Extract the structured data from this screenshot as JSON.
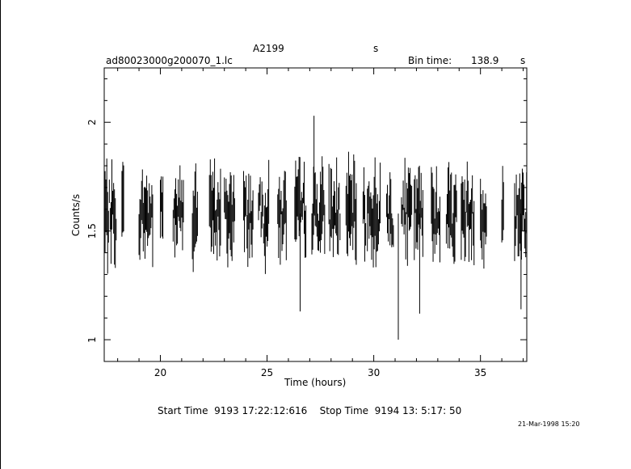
{
  "chart_data": {
    "type": "line",
    "title": "A2199",
    "title_suffix": "s",
    "subtitle_left": "ad80023000g200070_1.lc",
    "bin_time_label": "Bin time:",
    "bin_time_value": "138.9",
    "bin_time_unit": "s",
    "xlabel": "Time (hours)",
    "ylabel": "Counts/s",
    "xlim": [
      17.37,
      37.17
    ],
    "ylim": [
      0.9,
      2.25
    ],
    "xticks": [
      20,
      25,
      30,
      35
    ],
    "xtick_labels": [
      "20",
      "25",
      "30",
      "35"
    ],
    "yticks": [
      1,
      1.5,
      2
    ],
    "ytick_labels": [
      "1",
      "1.5",
      "2"
    ],
    "segments": [
      [
        17.37,
        17.95
      ],
      [
        18.2,
        18.3
      ],
      [
        19.0,
        19.65
      ],
      [
        20.0,
        20.15
      ],
      [
        20.6,
        21.1
      ],
      [
        21.5,
        21.75
      ],
      [
        22.3,
        22.85
      ],
      [
        23.0,
        23.5
      ],
      [
        23.9,
        24.35
      ],
      [
        24.6,
        25.1
      ],
      [
        25.5,
        25.9
      ],
      [
        26.3,
        26.85
      ],
      [
        27.1,
        27.7
      ],
      [
        27.9,
        28.45
      ],
      [
        28.7,
        29.2
      ],
      [
        29.5,
        29.65
      ],
      [
        29.7,
        30.3
      ],
      [
        30.6,
        30.95
      ],
      [
        31.3,
        31.8
      ],
      [
        31.9,
        32.3
      ],
      [
        32.7,
        33.1
      ],
      [
        33.4,
        33.9
      ],
      [
        34.1,
        34.7
      ],
      [
        35.0,
        35.3
      ],
      [
        36.0,
        36.1
      ],
      [
        36.6,
        37.17
      ]
    ],
    "features": [
      {
        "x": 27.2,
        "y": 2.03
      },
      {
        "x": 31.15,
        "y": 1.0
      },
      {
        "x": 26.55,
        "y": 1.13
      },
      {
        "x": 32.15,
        "y": 1.12
      },
      {
        "x": 36.9,
        "y": 1.14
      }
    ],
    "typical_count_rate": 1.58,
    "typical_spread": 0.13,
    "footer_text": "Start Time  9193 17:22:12:616    Stop Time  9194 13: 5:17: 50",
    "date_stamp": "21-Mar-1998 15:20"
  }
}
